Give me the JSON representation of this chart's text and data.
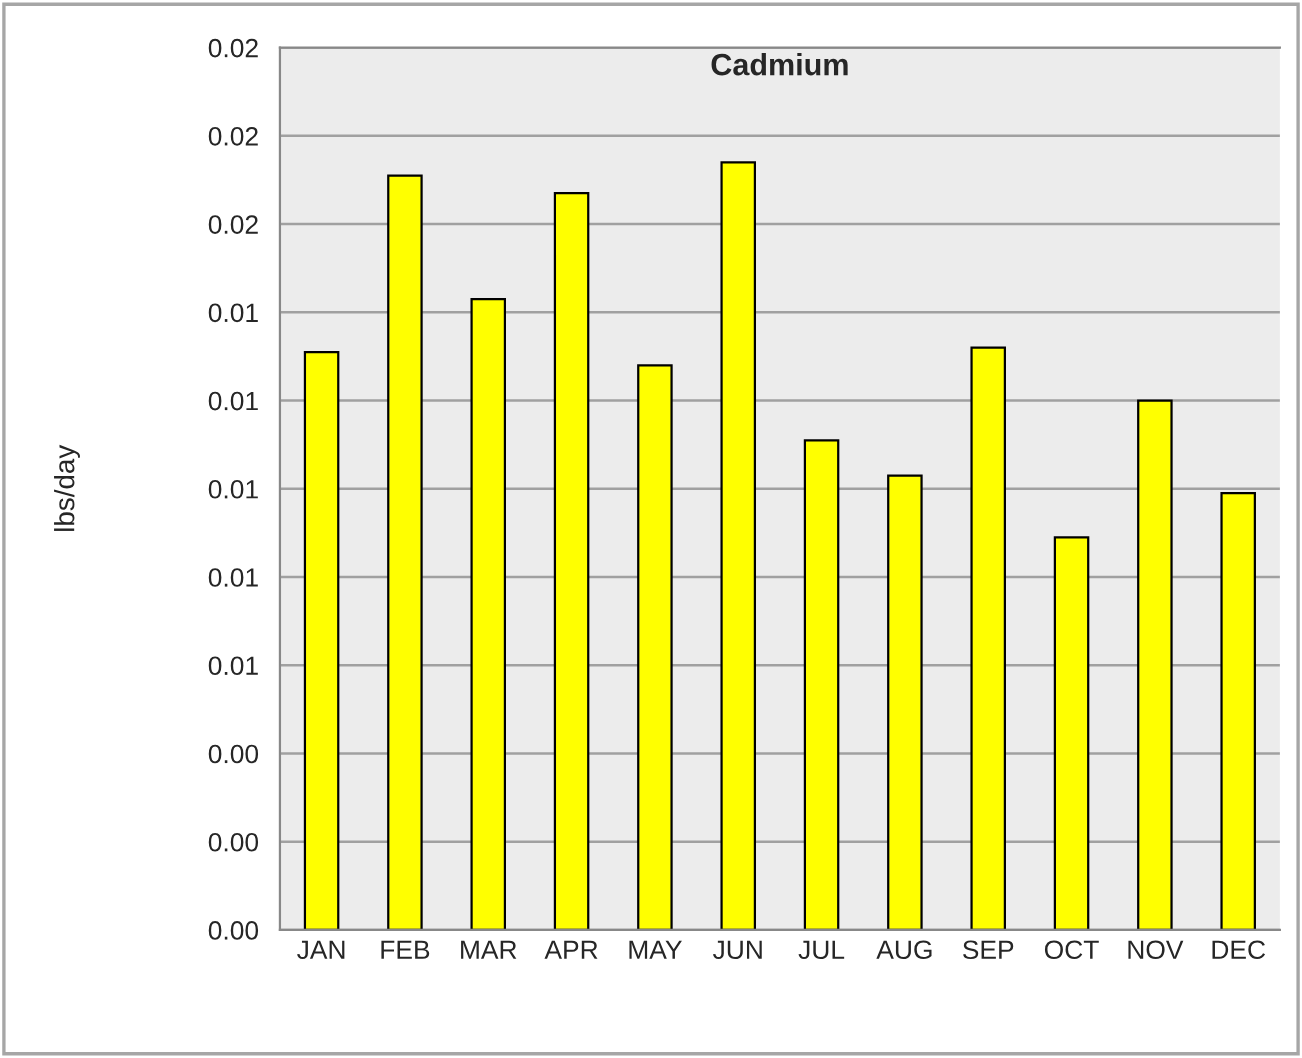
{
  "chart_data": {
    "type": "bar",
    "title": "Cadmium",
    "ylabel": "lbs/day",
    "categories": [
      "JAN",
      "FEB",
      "MAR",
      "APR",
      "MAY",
      "JUN",
      "JUL",
      "AUG",
      "SEP",
      "OCT",
      "NOV",
      "DEC"
    ],
    "values": [
      0.0131,
      0.0171,
      0.0143,
      0.0167,
      0.0128,
      0.0174,
      0.0111,
      0.0103,
      0.0132,
      0.0089,
      0.012,
      0.0099
    ],
    "color": "#ffff00",
    "ylim": [
      0,
      0.02
    ],
    "yticks": [
      {
        "value": 0,
        "label": "0.00"
      },
      {
        "value": 0.002,
        "label": "0.00"
      },
      {
        "value": 0.004,
        "label": "0.00"
      },
      {
        "value": 0.006,
        "label": "0.01"
      },
      {
        "value": 0.008,
        "label": "0.01"
      },
      {
        "value": 0.01,
        "label": "0.01"
      },
      {
        "value": 0.012,
        "label": "0.01"
      },
      {
        "value": 0.014,
        "label": "0.01"
      },
      {
        "value": 0.016,
        "label": "0.02"
      },
      {
        "value": 0.018,
        "label": "0.02"
      },
      {
        "value": 0.02,
        "label": "0.02"
      }
    ],
    "grid": "y"
  }
}
